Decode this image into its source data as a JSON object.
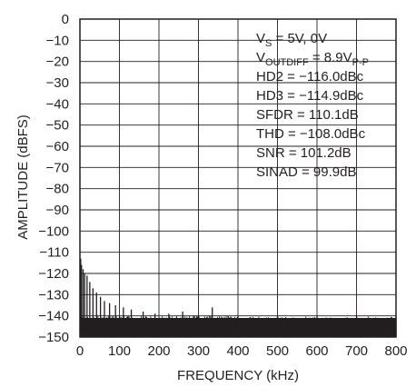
{
  "chart_data": {
    "type": "bar",
    "title": "",
    "xlabel": "FREQUENCY (kHz)",
    "ylabel": "AMPLITUDE (dBFS)",
    "xlim": [
      0,
      800
    ],
    "ylim": [
      -150,
      0
    ],
    "xticks": [
      "0",
      "100",
      "200",
      "300",
      "400",
      "500",
      "600",
      "700",
      "800"
    ],
    "yticks": [
      "0",
      "−10",
      "−20",
      "−30",
      "−40",
      "−50",
      "−60",
      "−70",
      "−80",
      "−90",
      "−100",
      "−110",
      "−120",
      "−130",
      "−140",
      "−150"
    ],
    "grid": true,
    "color": "#231f20",
    "noise_floor_dbfs": -141,
    "peaks": [
      {
        "x": 2,
        "y": -113
      },
      {
        "x": 4,
        "y": -116
      },
      {
        "x": 8,
        "y": -118
      },
      {
        "x": 12,
        "y": -120
      },
      {
        "x": 18,
        "y": -121
      },
      {
        "x": 25,
        "y": -124
      },
      {
        "x": 33,
        "y": -127
      },
      {
        "x": 42,
        "y": -129
      },
      {
        "x": 52,
        "y": -131
      },
      {
        "x": 62,
        "y": -133
      },
      {
        "x": 75,
        "y": -134
      },
      {
        "x": 90,
        "y": -135
      },
      {
        "x": 110,
        "y": -136
      },
      {
        "x": 130,
        "y": -137
      },
      {
        "x": 160,
        "y": -138
      },
      {
        "x": 190,
        "y": -139
      },
      {
        "x": 225,
        "y": -139
      },
      {
        "x": 260,
        "y": -138
      },
      {
        "x": 335,
        "y": -136
      },
      {
        "x": 400,
        "y": -140
      },
      {
        "x": 500,
        "y": -140
      },
      {
        "x": 600,
        "y": -140
      },
      {
        "x": 700,
        "y": -140
      },
      {
        "x": 800,
        "y": -140
      }
    ],
    "annotations": {
      "vs_main": "V",
      "vs_sub": "S",
      "vs_rest": " = 5V, 0V",
      "vout_main": "V",
      "vout_sub": "OUTDIFF",
      "vout_mid": " = 8.9V",
      "vout_sub2": "P-P",
      "hd2": "HD2 = −116.0dBc",
      "hd3": "HD3 = −114.9dBc",
      "sfdr": "SFDR = 110.1dB",
      "thd": "THD = −108.0dBc",
      "snr": "SNR = 101.2dB",
      "sinad": "SINAD = 99.9dB"
    }
  }
}
